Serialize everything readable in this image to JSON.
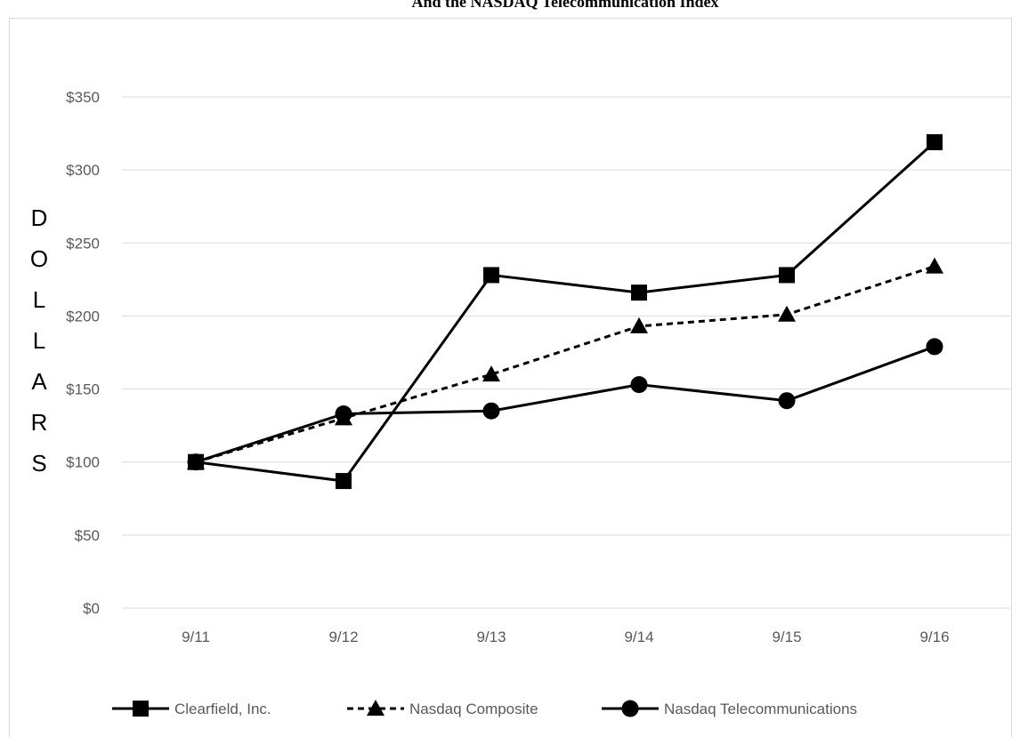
{
  "chart_data": {
    "type": "line",
    "title": "And the NASDAQ Telecommunication Index",
    "ylabel": "DOLLARS",
    "xlabel": "",
    "categories": [
      "9/11",
      "9/12",
      "9/13",
      "9/14",
      "9/15",
      "9/16"
    ],
    "y_tick_labels": [
      "$0",
      "$50",
      "$100",
      "$150",
      "$200",
      "$250",
      "$300",
      "$350"
    ],
    "y_ticks": [
      0,
      50,
      100,
      150,
      200,
      250,
      300,
      350
    ],
    "ylim": [
      0,
      350
    ],
    "grid": true,
    "legend_position": "bottom",
    "series": [
      {
        "name": "Clearfield, Inc.",
        "values": [
          100,
          87,
          228,
          216,
          228,
          319
        ],
        "marker": "square",
        "line": "solid",
        "color": "#000000"
      },
      {
        "name": "Nasdaq Composite",
        "values": [
          100,
          130,
          160,
          193,
          201,
          234
        ],
        "marker": "triangle",
        "line": "dashed",
        "color": "#000000"
      },
      {
        "name": "Nasdaq Telecommunications",
        "values": [
          100,
          133,
          135,
          153,
          142,
          179
        ],
        "marker": "circle",
        "line": "solid",
        "color": "#000000"
      }
    ]
  }
}
